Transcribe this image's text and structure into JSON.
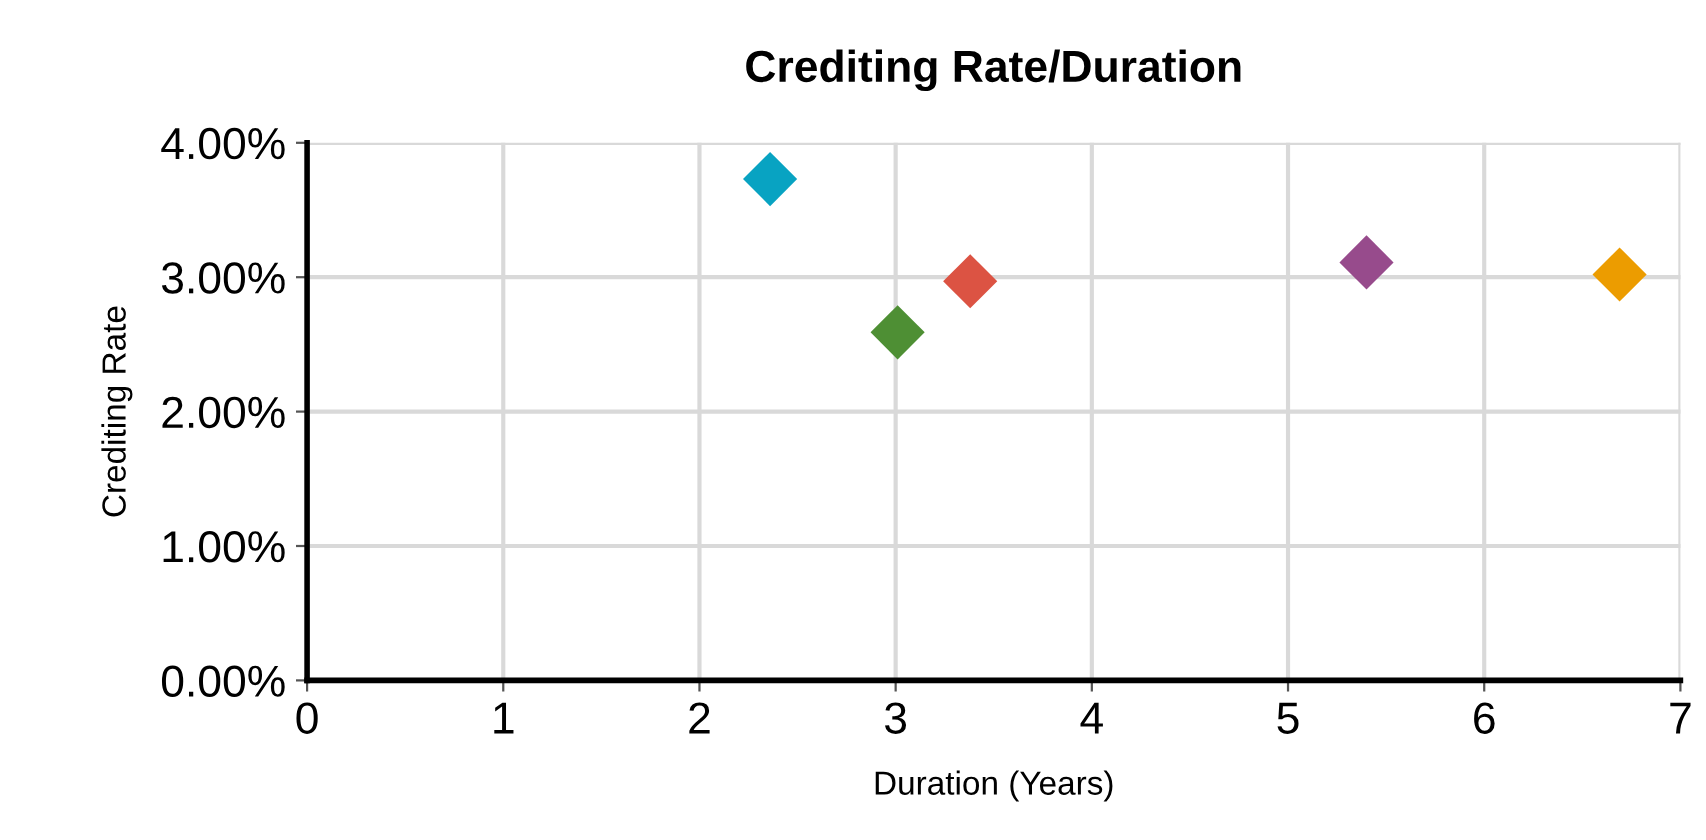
{
  "chart_data": {
    "type": "scatter",
    "title": "Crediting Rate/Duration",
    "xlabel": "Duration (Years)",
    "ylabel": "Crediting Rate",
    "x": [
      2.36,
      3.01,
      3.38,
      5.4,
      6.69
    ],
    "values": [
      3.73,
      2.59,
      2.97,
      3.11,
      3.02
    ],
    "colors": [
      "#08a3c2",
      "#4e8f34",
      "#dc5343",
      "#974b8c",
      "#ec9c00"
    ],
    "marker": "diamond",
    "grid": true,
    "xlim": [
      0,
      7
    ],
    "xticks": [
      0,
      1,
      2,
      3,
      4,
      5,
      6,
      7
    ],
    "ylim": [
      0,
      4
    ],
    "yticks": [
      {
        "value": 0,
        "label": "0.00%"
      },
      {
        "value": 1,
        "label": "1.00%"
      },
      {
        "value": 2,
        "label": "2.00%"
      },
      {
        "value": 3,
        "label": "3.00%"
      },
      {
        "value": 4,
        "label": "4.00%"
      }
    ]
  }
}
